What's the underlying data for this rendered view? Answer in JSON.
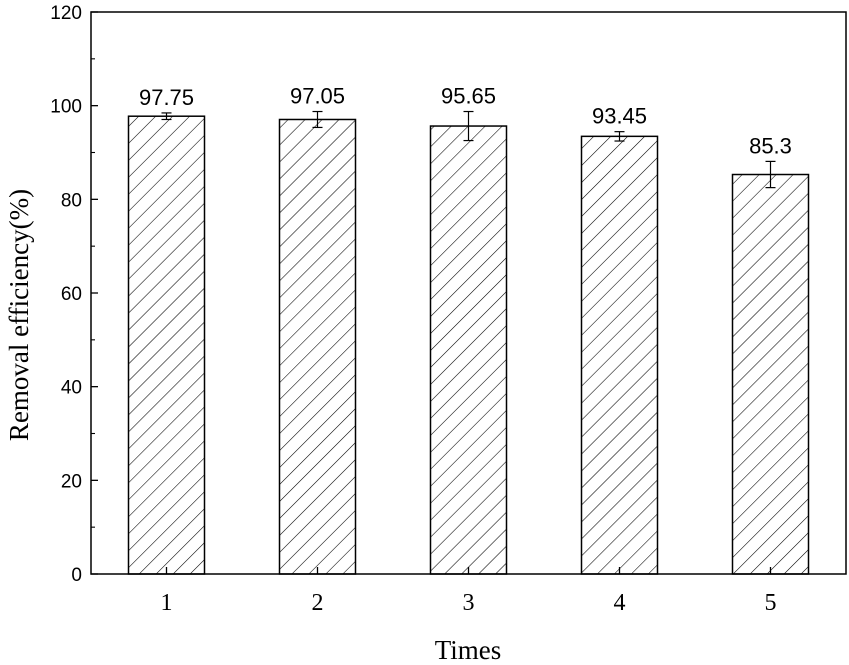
{
  "chart_data": {
    "type": "bar",
    "categories": [
      "1",
      "2",
      "3",
      "4",
      "5"
    ],
    "values": [
      97.75,
      97.05,
      95.65,
      93.45,
      85.3
    ],
    "value_labels": [
      "97.75",
      "97.05",
      "95.65",
      "93.45",
      "85.3"
    ],
    "error": [
      0.7,
      1.7,
      3.1,
      1.0,
      2.8
    ],
    "xlabel": "Times",
    "ylabel": "Removal efficiency(%)",
    "ylim": [
      0,
      120
    ],
    "yticks": [
      0,
      20,
      40,
      60,
      80,
      100,
      120
    ],
    "yticks_labels": [
      "0",
      "20",
      "40",
      "60",
      "80",
      "100",
      "120"
    ],
    "grid": false,
    "bar_fill": "hatched-diagonal",
    "colors": {
      "bar_stroke": "#000000",
      "hatch": "#000000",
      "background": "#ffffff"
    }
  }
}
